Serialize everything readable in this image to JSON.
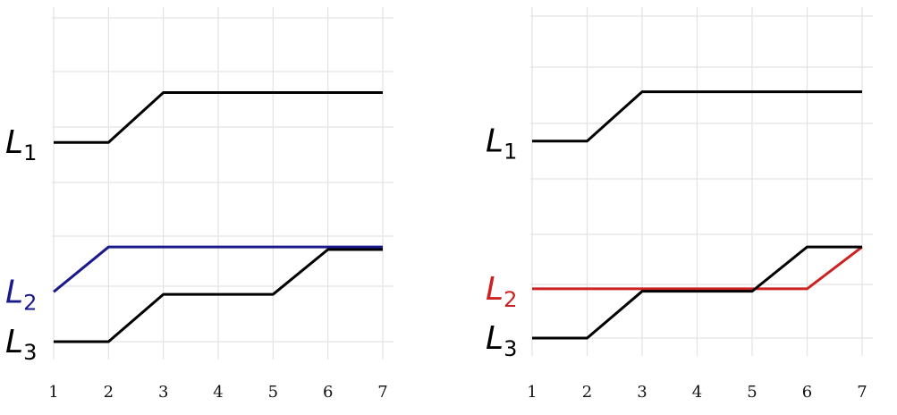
{
  "chart_data": [
    {
      "type": "line",
      "title": "",
      "xlabel": "",
      "ylabel": "",
      "x": [
        1,
        2,
        3,
        4,
        5,
        6,
        7
      ],
      "xticks": [
        "1",
        "2",
        "3",
        "4",
        "5",
        "6",
        "7"
      ],
      "ylim": [
        0,
        6.5
      ],
      "grid": true,
      "series": [
        {
          "name": "L1",
          "color": "#000000",
          "points": [
            [
              1,
              4.0
            ],
            [
              2,
              4.0
            ],
            [
              3,
              5.0
            ],
            [
              7,
              5.0
            ]
          ]
        },
        {
          "name": "L2",
          "color": "#1a1a8c",
          "points": [
            [
              1,
              1.0
            ],
            [
              2,
              1.9
            ],
            [
              7,
              1.9
            ]
          ]
        },
        {
          "name": "L3",
          "color": "#000000",
          "points": [
            [
              1,
              0.0
            ],
            [
              2,
              0.0
            ],
            [
              3,
              0.95
            ],
            [
              5,
              0.95
            ],
            [
              6,
              1.85
            ],
            [
              7,
              1.85
            ]
          ]
        }
      ]
    },
    {
      "type": "line",
      "title": "",
      "xlabel": "",
      "ylabel": "",
      "x": [
        1,
        2,
        3,
        4,
        5,
        6,
        7
      ],
      "xticks": [
        "1",
        "2",
        "3",
        "4",
        "5",
        "6",
        "7"
      ],
      "ylim": [
        0,
        6.5
      ],
      "grid": true,
      "series": [
        {
          "name": "L1",
          "color": "#000000",
          "points": [
            [
              1,
              4.0
            ],
            [
              2,
              4.0
            ],
            [
              3,
              5.0
            ],
            [
              7,
              5.0
            ]
          ]
        },
        {
          "name": "L2",
          "color": "#cc2222",
          "points": [
            [
              1,
              1.0
            ],
            [
              6,
              1.0
            ],
            [
              7,
              1.85
            ]
          ]
        },
        {
          "name": "L3",
          "color": "#000000",
          "points": [
            [
              1,
              0.0
            ],
            [
              2,
              0.0
            ],
            [
              3,
              0.95
            ],
            [
              5,
              0.95
            ],
            [
              6,
              1.85
            ],
            [
              7,
              1.85
            ]
          ]
        }
      ]
    }
  ]
}
